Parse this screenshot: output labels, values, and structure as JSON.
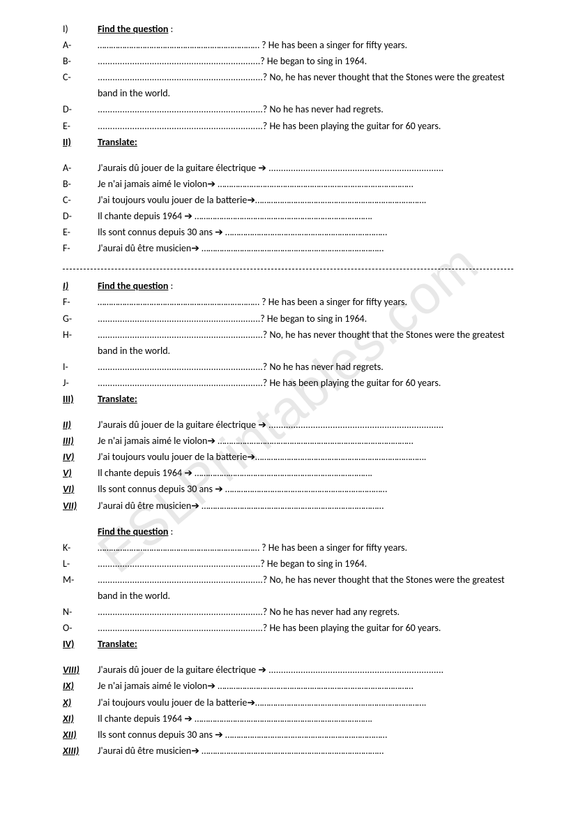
{
  "watermark": "ESLPrintables.com",
  "sections": [
    {
      "heading": {
        "marker": "I)",
        "marker_style": "plain",
        "title": "Find the question",
        "colon": " :"
      },
      "items": [
        {
          "marker": "A-",
          "style": "plain",
          "text": "……………………………………………………………… ? He has been a singer for fifty years."
        },
        {
          "marker": "B-",
          "style": "plain",
          "text": "..................................................................? He began to sing in 1964."
        },
        {
          "marker": "C-",
          "style": "plain",
          "text": "...................................................................? No, he has never thought that the Stones were the greatest band in the world."
        },
        {
          "marker": "D-",
          "style": "plain",
          "text": "...................................................................? No he has never had regrets."
        },
        {
          "marker": "E-",
          "style": "plain",
          "text": "...................................................................? He has been playing the guitar for 60 years."
        }
      ]
    },
    {
      "heading": {
        "marker": "II)",
        "marker_style": "bold-u",
        "title": "Translate:",
        "colon": ""
      },
      "gap_before_items": true,
      "items": [
        {
          "marker": "A-",
          "style": "plain",
          "text": "J'aurais dû jouer de la guitare électrique ➔ ......................................................................."
        },
        {
          "marker": "B-",
          "style": "plain",
          "text": "Je n'ai jamais aimé le violon➔ ……………………………………………………………………………"
        },
        {
          "marker": "C-",
          "style": "plain",
          "text": "J'ai toujours voulu jouer de la batterie➔…………………………………………………………………."
        },
        {
          "marker": "D-",
          "style": "plain",
          "text": "Il chante depuis 1964 ➔ ……………………………………………………………………."
        },
        {
          "marker": "E-",
          "style": "plain",
          "text": "Ils sont connus depuis 30 ans ➔ ………………………………………………………………"
        },
        {
          "marker": "F-",
          "style": "plain",
          "text": "J'aurai dû être musicien➔ ………………………………………………………………………"
        }
      ]
    }
  ],
  "divider": true,
  "sections2": [
    {
      "heading": {
        "marker": "I)",
        "marker_style": "bold-u-i",
        "title": "Find the question",
        "colon": " :"
      },
      "items": [
        {
          "marker": "F-",
          "style": "plain",
          "text": "……………………………………………………………… ? He has been a singer for fifty years."
        },
        {
          "marker": "G-",
          "style": "plain",
          "text": "..................................................................? He began to sing in 1964."
        },
        {
          "marker": "H-",
          "style": "plain",
          "text": "...................................................................? No, he has never thought that the Stones were the greatest band in the world."
        },
        {
          "marker": "I-",
          "style": "plain",
          "text": "...................................................................? No he has never had regrets."
        },
        {
          "marker": "J-",
          "style": "plain",
          "text": "...................................................................? He has been playing the guitar for 60 years."
        }
      ]
    },
    {
      "heading": {
        "marker": "III)",
        "marker_style": "bold-u",
        "title": "Translate:",
        "colon": ""
      },
      "gap_before_items": true,
      "items": [
        {
          "marker": "II)",
          "style": "bold-u-i",
          "text": "J'aurais dû jouer de la guitare électrique ➔ ......................................................................."
        },
        {
          "marker": "III)",
          "style": "bold-u-i",
          "text": "Je n'ai jamais aimé le violon➔ ……………………………………………………………………………"
        },
        {
          "marker": "IV)",
          "style": "bold-u-i",
          "text": "J'ai toujours voulu jouer de la batterie➔…………………………………………………………………."
        },
        {
          "marker": "V)",
          "style": "bold-u-i",
          "text": "Il chante depuis 1964 ➔ ……………………………………………………………………."
        },
        {
          "marker": "VI)",
          "style": "bold-u-i",
          "text": "Ils sont connus depuis 30 ans ➔ ………………………………………………………………"
        },
        {
          "marker": "VII)",
          "style": "bold-u-i",
          "text": "J'aurai dû être musicien➔ ………………………………………………………………………"
        }
      ]
    },
    {
      "heading": {
        "marker": "",
        "marker_style": "plain",
        "title": "Find the question",
        "colon": " :"
      },
      "gap_before_heading": true,
      "items": [
        {
          "marker": "K-",
          "style": "plain",
          "text": "……………………………………………………………… ? He has been a singer for fifty years."
        },
        {
          "marker": "L-",
          "style": "plain",
          "text": "..................................................................? He began to sing in 1964."
        },
        {
          "marker": "M-",
          "style": "plain",
          "text": "...................................................................? No, he has never thought that the Stones were the greatest band in the world."
        },
        {
          "marker": "N-",
          "style": "plain",
          "text": "...................................................................? No he has never had any regrets."
        },
        {
          "marker": "O-",
          "style": "plain",
          "text": "...................................................................? He has been playing the guitar for 60 years."
        }
      ]
    },
    {
      "heading": {
        "marker": "IV)",
        "marker_style": "bold-u",
        "title": "Translate:",
        "colon": ""
      },
      "gap_before_items": true,
      "items": [
        {
          "marker": "VIII)",
          "style": "bold-u-i",
          "text": "J'aurais dû jouer de la guitare électrique ➔ ......................................................................."
        },
        {
          "marker": "IX)",
          "style": "bold-u-i",
          "text": "Je n'ai jamais aimé le violon➔ ……………………………………………………………………………"
        },
        {
          "marker": "X)",
          "style": "bold-u-i",
          "text": "J'ai toujours voulu jouer de la batterie➔…………………………………………………………………."
        },
        {
          "marker": "XI)",
          "style": "bold-u-i",
          "text": "Il chante depuis 1964 ➔ ……………………………………………………………………."
        },
        {
          "marker": "XII)",
          "style": "bold-u-i",
          "text": "Ils sont connus depuis 30 ans ➔ ………………………………………………………………"
        },
        {
          "marker": "XIII)",
          "style": "bold-u-i",
          "text": "J'aurai dû être musicien➔ ………………………………………………………………………"
        }
      ]
    }
  ]
}
